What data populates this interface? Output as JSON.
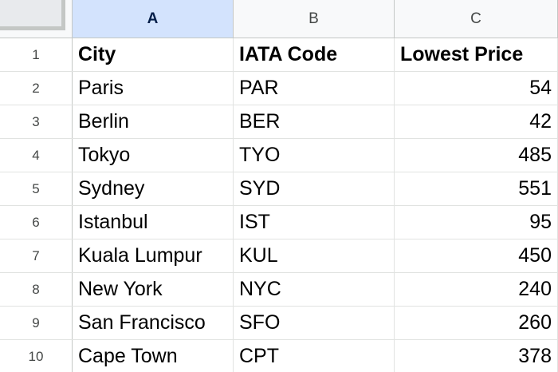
{
  "columns": [
    "A",
    "B",
    "C"
  ],
  "rows": [
    {
      "num": "1",
      "city": "City",
      "iata": "IATA Code",
      "price": "Lowest Price"
    },
    {
      "num": "2",
      "city": "Paris",
      "iata": "PAR",
      "price": "54"
    },
    {
      "num": "3",
      "city": "Berlin",
      "iata": "BER",
      "price": "42"
    },
    {
      "num": "4",
      "city": "Tokyo",
      "iata": "TYO",
      "price": "485"
    },
    {
      "num": "5",
      "city": "Sydney",
      "iata": "SYD",
      "price": "551"
    },
    {
      "num": "6",
      "city": "Istanbul",
      "iata": "IST",
      "price": "95"
    },
    {
      "num": "7",
      "city": "Kuala Lumpur",
      "iata": "KUL",
      "price": "450"
    },
    {
      "num": "8",
      "city": "New York",
      "iata": "NYC",
      "price": "240"
    },
    {
      "num": "9",
      "city": "San Francisco",
      "iata": "SFO",
      "price": "260"
    },
    {
      "num": "10",
      "city": "Cape Town",
      "iata": "CPT",
      "price": "378"
    }
  ],
  "colors": {
    "selected_column_bg": "#d3e3fd",
    "header_bg": "#f8f9fa",
    "gridline": "#e1e3e1"
  }
}
